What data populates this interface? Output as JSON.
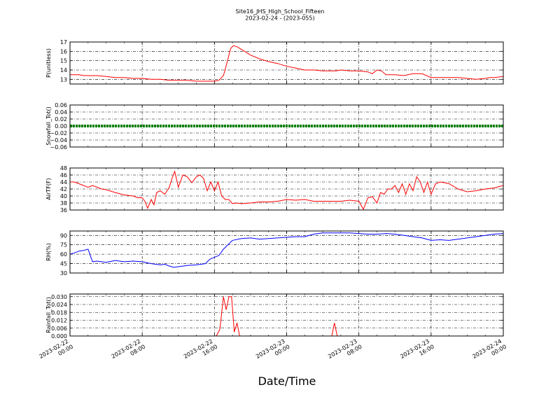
{
  "figure": {
    "title_line1": "Site16_JHS_High_School_Fifteen",
    "title_line2": "2023-02-24 - (2023-055)",
    "xlabel": "Date/Time",
    "x_ticks": [
      {
        "t": 0,
        "line1": "2023-02-22",
        "line2": "00:00"
      },
      {
        "t": 8,
        "line1": "2023-02-22",
        "line2": "08:00"
      },
      {
        "t": 16,
        "line1": "2023-02-22",
        "line2": "16:00"
      },
      {
        "t": 24,
        "line1": "2023-02-23",
        "line2": "00:00"
      },
      {
        "t": 32,
        "line1": "2023-02-23",
        "line2": "08:00"
      },
      {
        "t": 40,
        "line1": "2023-02-23",
        "line2": "16:00"
      },
      {
        "t": 48,
        "line1": "2023-02-24",
        "line2": "00:00"
      }
    ],
    "x_range_hours": [
      0,
      48
    ]
  },
  "chart_data": [
    {
      "type": "line",
      "ylabel": "P(unitless)",
      "color": "#ff0000",
      "ylim": [
        12.5,
        17
      ],
      "yticks": [
        13,
        14,
        15,
        16,
        17
      ],
      "tick_labels": [
        "13",
        "14",
        "15",
        "16",
        "17"
      ],
      "grid": true,
      "x_hours": [
        0,
        1,
        1.5,
        3,
        4,
        5,
        6,
        7,
        8,
        9,
        10,
        11,
        12,
        13,
        14,
        15,
        16,
        16.5,
        17,
        17.4,
        17.8,
        18.1,
        18.5,
        19,
        19.5,
        20,
        21,
        22,
        23,
        24,
        25,
        26,
        27,
        28,
        29,
        29.5,
        30,
        31,
        32,
        33,
        33.5,
        34,
        34.5,
        35,
        35.5,
        36,
        37,
        38,
        39,
        40,
        40.5,
        41,
        42,
        43,
        44,
        45,
        46,
        46.5,
        47,
        48
      ],
      "values": [
        13.5,
        13.5,
        13.4,
        13.4,
        13.3,
        13.2,
        13.2,
        13.1,
        13.1,
        13.0,
        13.0,
        12.9,
        12.9,
        12.9,
        12.8,
        12.8,
        12.8,
        12.9,
        13.4,
        14.8,
        16.3,
        16.6,
        16.5,
        16.2,
        15.9,
        15.6,
        15.2,
        14.9,
        14.7,
        14.4,
        14.2,
        14.0,
        14.0,
        13.9,
        13.9,
        13.9,
        14.0,
        13.9,
        13.9,
        13.8,
        13.6,
        14.0,
        13.9,
        13.5,
        13.5,
        13.5,
        13.4,
        13.6,
        13.6,
        13.2,
        13.2,
        13.2,
        13.2,
        13.2,
        13.1,
        13.0,
        13.1,
        13.2,
        13.2,
        13.3
      ]
    },
    {
      "type": "line",
      "ylabel": "Snowfall_Tot()",
      "color": "#008000",
      "ylim": [
        -0.06,
        0.06
      ],
      "yticks": [
        -0.06,
        -0.04,
        -0.02,
        0,
        0.02,
        0.04,
        0.06
      ],
      "tick_labels": [
        "−0.06",
        "−0.04",
        "−0.02",
        "0.00",
        "0.02",
        "0.04",
        "0.06"
      ],
      "grid": true,
      "x_hours": [
        0,
        48
      ],
      "values": [
        0,
        0
      ]
    },
    {
      "type": "line",
      "ylabel": "AirTF(F)",
      "color": "#ff0000",
      "ylim": [
        36,
        48
      ],
      "yticks": [
        36,
        38,
        40,
        42,
        44,
        46,
        48
      ],
      "tick_labels": [
        "36",
        "38",
        "40",
        "42",
        "44",
        "46",
        "48"
      ],
      "grid": true,
      "x_hours": [
        0,
        0.5,
        1,
        1.5,
        2,
        2.5,
        3,
        3.5,
        4,
        5,
        6,
        7,
        7.5,
        8,
        8.3,
        8.6,
        9,
        9.3,
        9.6,
        10,
        10.5,
        11,
        11.3,
        11.6,
        12,
        12.5,
        13,
        13.5,
        14,
        14.4,
        14.8,
        15.2,
        15.6,
        16,
        16.4,
        16.8,
        17.2,
        17.6,
        18,
        18.5,
        19,
        20,
        21,
        22,
        23,
        24,
        25,
        26,
        27,
        28,
        29,
        30,
        31,
        32,
        32.5,
        33,
        33.5,
        34,
        34.4,
        34.8,
        35.2,
        35.6,
        36,
        36.4,
        36.8,
        37.2,
        37.6,
        38,
        38.4,
        38.8,
        39.2,
        39.6,
        40,
        40.5,
        41,
        41.5,
        42,
        43,
        44,
        45,
        46,
        47,
        48
      ],
      "values": [
        44,
        44,
        43.5,
        43,
        42.5,
        43,
        42.5,
        42,
        41.8,
        41,
        40.3,
        40,
        39.5,
        39.5,
        38.5,
        36.5,
        39,
        37.5,
        41,
        41.5,
        40.5,
        42.5,
        45,
        47,
        42.5,
        46,
        45.5,
        43.8,
        45.5,
        46,
        45,
        41.5,
        44,
        41.5,
        44,
        40,
        39,
        39,
        37.8,
        38,
        37.8,
        38,
        38.3,
        38.3,
        38.5,
        39,
        38.8,
        39,
        38.5,
        38.5,
        38.5,
        38.5,
        38.8,
        38.5,
        36.2,
        39.5,
        39.8,
        38,
        41,
        40.5,
        42,
        42,
        43,
        41,
        43.5,
        40.5,
        43.5,
        41.5,
        45.5,
        44,
        41,
        44,
        40.5,
        43.5,
        44,
        43.8,
        43.5,
        42,
        41.2,
        41.5,
        42,
        42.3,
        43
      ]
    },
    {
      "type": "line",
      "ylabel": "RH(%)",
      "color": "#0000ff",
      "ylim": [
        30,
        97
      ],
      "yticks": [
        30,
        45,
        60,
        75,
        90
      ],
      "tick_labels": [
        "30",
        "45",
        "60",
        "75",
        "90"
      ],
      "grid": true,
      "x_hours": [
        0,
        0.5,
        1,
        1.5,
        2,
        2.5,
        3,
        4,
        5,
        6,
        7,
        8,
        9,
        10,
        10.5,
        11,
        11.5,
        12,
        13,
        14,
        15,
        15.5,
        16,
        16.5,
        17,
        18,
        19,
        20,
        21,
        22,
        23,
        24,
        25,
        26,
        27,
        28,
        29,
        30,
        31,
        32,
        33,
        34,
        35,
        36,
        37,
        38,
        39,
        40,
        41,
        42,
        43,
        44,
        45,
        46,
        47,
        48
      ],
      "values": [
        60,
        62,
        65,
        66,
        68,
        48,
        49,
        47,
        50,
        48,
        49,
        48,
        45,
        43,
        44,
        41,
        39,
        40,
        42,
        43,
        45,
        52,
        55,
        58,
        68,
        82,
        85,
        86,
        84,
        85,
        86,
        87,
        88,
        88,
        92,
        94,
        94,
        94,
        94,
        93,
        92,
        92,
        93,
        92,
        90,
        88,
        86,
        82,
        83,
        82,
        84,
        86,
        88,
        90,
        92,
        93
      ]
    },
    {
      "type": "line",
      "ylabel": "Rainfall_Tot()",
      "color": "#ff0000",
      "ylim": [
        0,
        0.032
      ],
      "yticks": [
        0,
        0.006,
        0.012,
        0.018,
        0.024,
        0.03
      ],
      "tick_labels": [
        "0.000",
        "0.006",
        "0.012",
        "0.018",
        "0.024",
        "0.030"
      ],
      "grid": true,
      "x_hours": [
        0,
        16.2,
        16.6,
        17.0,
        17.3,
        17.6,
        17.9,
        18.2,
        18.5,
        18.8,
        19.0,
        29.0,
        29.3,
        29.6,
        48
      ],
      "values": [
        0,
        0,
        0.005,
        0.03,
        0.02,
        0.03,
        0.03,
        0.003,
        0.01,
        0,
        0,
        0,
        0.01,
        0,
        0
      ]
    }
  ]
}
